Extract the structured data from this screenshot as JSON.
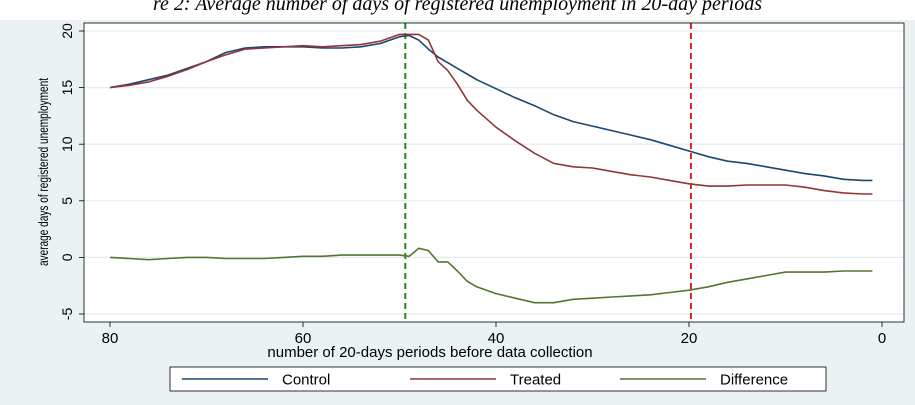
{
  "caption": "re 2: Average number of days of registered unemployment in 20-day periods",
  "chart_data": {
    "type": "line",
    "xlabel": "number of 20-days periods before data collection",
    "ylabel": "average days of registered unemployment",
    "xlim": [
      80,
      0
    ],
    "ylim": [
      -5,
      20
    ],
    "xticks": [
      80,
      60,
      40,
      20,
      0
    ],
    "yticks": [
      20,
      15,
      10,
      5,
      0,
      -5
    ],
    "grid": "horizontal",
    "legend": "bottom",
    "vlines": [
      {
        "x": 49.4,
        "color": "#1f8a1f",
        "style": "dashed"
      },
      {
        "x": 19.8,
        "color": "#e02020",
        "style": "dashed"
      }
    ],
    "series": [
      {
        "name": "Control",
        "color": "#1a476f",
        "x": [
          80,
          78,
          76,
          74,
          72,
          70,
          68,
          66,
          64,
          62,
          60,
          58,
          56,
          54,
          52,
          50,
          49,
          48,
          47,
          46,
          45,
          44,
          43,
          42,
          40,
          38,
          36,
          34,
          32,
          30,
          28,
          26,
          24,
          22,
          20,
          18,
          16,
          14,
          12,
          10,
          8,
          6,
          4,
          2,
          1
        ],
        "y": [
          15.0,
          15.3,
          15.7,
          16.1,
          16.7,
          17.3,
          18.1,
          18.5,
          18.6,
          18.6,
          18.6,
          18.5,
          18.5,
          18.6,
          18.9,
          19.5,
          19.6,
          19.2,
          18.4,
          17.7,
          17.2,
          16.7,
          16.2,
          15.7,
          14.9,
          14.1,
          13.4,
          12.6,
          12.0,
          11.6,
          11.2,
          10.8,
          10.4,
          9.9,
          9.4,
          8.9,
          8.5,
          8.3,
          8.0,
          7.7,
          7.4,
          7.2,
          6.9,
          6.8,
          6.8
        ]
      },
      {
        "name": "Treated",
        "color": "#90353b",
        "x": [
          80,
          78,
          76,
          74,
          72,
          70,
          68,
          66,
          64,
          62,
          60,
          58,
          56,
          54,
          52,
          50,
          49,
          48,
          47,
          46,
          45,
          44,
          43,
          42,
          40,
          38,
          36,
          34,
          32,
          30,
          28,
          26,
          24,
          22,
          20,
          18,
          16,
          14,
          12,
          10,
          8,
          6,
          4,
          2,
          1
        ],
        "y": [
          15.0,
          15.2,
          15.5,
          16.0,
          16.6,
          17.3,
          17.9,
          18.4,
          18.5,
          18.6,
          18.7,
          18.6,
          18.7,
          18.8,
          19.1,
          19.7,
          19.7,
          19.7,
          19.2,
          17.3,
          16.5,
          15.3,
          13.9,
          13.0,
          11.5,
          10.3,
          9.2,
          8.3,
          8.0,
          7.9,
          7.6,
          7.3,
          7.1,
          6.8,
          6.5,
          6.3,
          6.3,
          6.4,
          6.4,
          6.4,
          6.2,
          5.9,
          5.7,
          5.6,
          5.6
        ]
      },
      {
        "name": "Difference",
        "color": "#55752f",
        "x": [
          80,
          78,
          76,
          74,
          72,
          70,
          68,
          66,
          64,
          62,
          60,
          58,
          56,
          54,
          52,
          50,
          49,
          48,
          47,
          46,
          45,
          44,
          43,
          42,
          40,
          38,
          36,
          34,
          32,
          30,
          28,
          26,
          24,
          22,
          20,
          18,
          16,
          14,
          12,
          10,
          8,
          6,
          4,
          2,
          1
        ],
        "y": [
          0.0,
          -0.1,
          -0.2,
          -0.1,
          0.0,
          0.0,
          -0.1,
          -0.1,
          -0.1,
          0.0,
          0.1,
          0.1,
          0.2,
          0.2,
          0.2,
          0.2,
          0.1,
          0.8,
          0.6,
          -0.4,
          -0.4,
          -1.2,
          -2.1,
          -2.6,
          -3.2,
          -3.6,
          -4.0,
          -4.0,
          -3.7,
          -3.6,
          -3.5,
          -3.4,
          -3.3,
          -3.1,
          -2.9,
          -2.6,
          -2.2,
          -1.9,
          -1.6,
          -1.3,
          -1.3,
          -1.3,
          -1.2,
          -1.2,
          -1.2
        ]
      }
    ]
  }
}
